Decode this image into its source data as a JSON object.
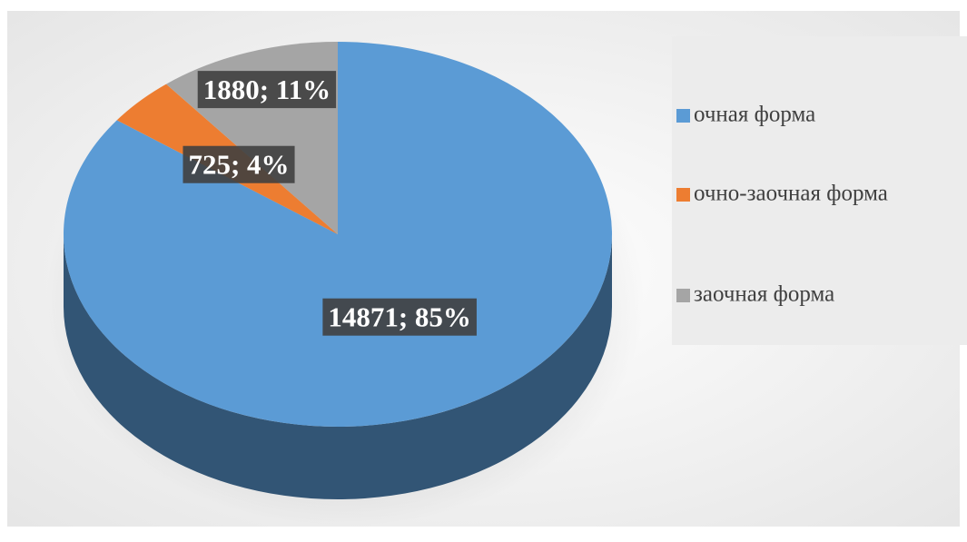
{
  "chart_data": {
    "type": "pie",
    "categories": [
      "очная форма",
      "очно-заочная форма",
      "заочная форма"
    ],
    "values": [
      14871,
      725,
      1880
    ],
    "value_labels": [
      "14871; 85%",
      "725; 4%",
      "1880; 11%"
    ],
    "colors": [
      "#5b9bd5",
      "#ed7d31",
      "#a5a5a5"
    ],
    "legend": "right"
  }
}
